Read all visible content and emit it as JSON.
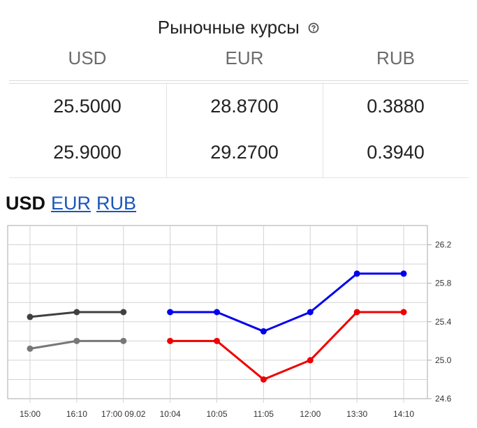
{
  "widget": {
    "title": "Рыночные курсы",
    "help_icon": "question-circle-icon",
    "columns": [
      "USD",
      "EUR",
      "RUB"
    ],
    "rows": [
      [
        "25.5000",
        "28.8700",
        "0.3880"
      ],
      [
        "25.9000",
        "29.2700",
        "0.3940"
      ]
    ]
  },
  "tabs": {
    "active": "USD",
    "links": [
      "EUR",
      "RUB"
    ]
  },
  "chart_data": {
    "type": "line",
    "categories": [
      "15:00",
      "16:10",
      "17:00 09.02",
      "10:04",
      "10:05",
      "11:05",
      "12:00",
      "13:30",
      "14:10"
    ],
    "y_ticks": [
      "26.2",
      "25.8",
      "25.4",
      "25.0",
      "24.6"
    ],
    "ylim": [
      24.6,
      26.4
    ],
    "grid": true,
    "series": [
      {
        "color": "#404040",
        "values": [
          25.45,
          25.5,
          25.5,
          null,
          null,
          null,
          null,
          null,
          null
        ]
      },
      {
        "color": "#777777",
        "values": [
          25.12,
          25.2,
          25.2,
          null,
          null,
          null,
          null,
          null,
          null
        ]
      },
      {
        "color": "#0000ee",
        "values": [
          null,
          null,
          null,
          25.5,
          25.5,
          25.3,
          25.5,
          25.9,
          25.9
        ]
      },
      {
        "color": "#ee0000",
        "values": [
          null,
          null,
          null,
          25.2,
          25.2,
          24.8,
          25.0,
          25.5,
          25.5
        ]
      }
    ]
  },
  "colors": {
    "accent_link": "#1a56b8",
    "grid": "#d3d3d3",
    "border": "#a9a9a9"
  }
}
